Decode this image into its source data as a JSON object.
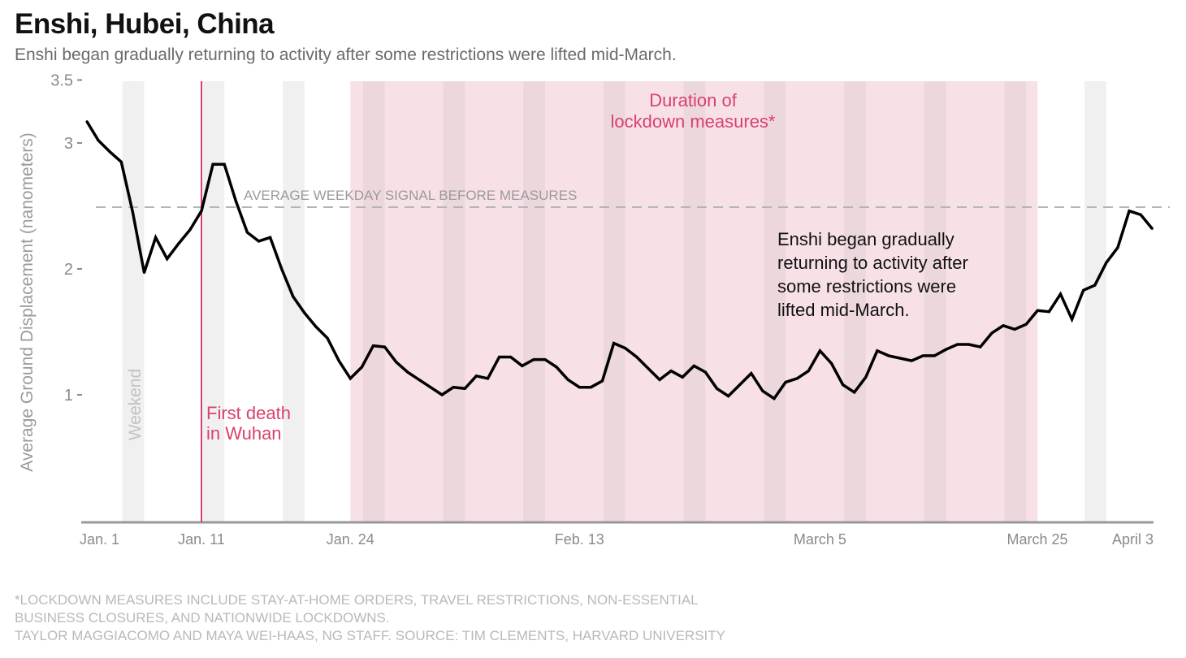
{
  "header": {
    "title": "Enshi, Hubei, China",
    "subtitle": "Enshi began gradually returning to activity after some restrictions were lifted mid-March."
  },
  "footer": {
    "note": "*Lockdown measures include stay-at-home orders, travel restrictions, non-essential\nbusiness closures, and nationwide lockdowns.",
    "credit": "Taylor Maggiacomo and Maya Wei-Haas, NG Staff. Source: Tim Clements, Harvard University"
  },
  "colors": {
    "line": "#000000",
    "lockdown": "#f7e1e7",
    "weekend": "#f0f0f0",
    "weekend_in_lockdown": "#ecd7dd",
    "accent": "#d9416b",
    "reference": "#b5b5b5",
    "axis": "#999999"
  },
  "chart_data": {
    "type": "line",
    "title": "Enshi, Hubei, China",
    "ylabel": "Average Ground Displacement (nanometers)",
    "xlabel": "",
    "ylim": [
      0,
      3.5
    ],
    "y_ticks": [
      {
        "value": 1,
        "label": "1"
      },
      {
        "value": 2,
        "label": "2"
      },
      {
        "value": 3,
        "label": "3"
      },
      {
        "value": 3.5,
        "label": "3.5"
      }
    ],
    "x_ticks": [
      {
        "day": 0,
        "label": "Jan. 1"
      },
      {
        "day": 10,
        "label": "Jan. 11"
      },
      {
        "day": 23,
        "label": "Jan. 24"
      },
      {
        "day": 43,
        "label": "Feb. 13"
      },
      {
        "day": 64,
        "label": "March 5"
      },
      {
        "day": 84,
        "label": "March 25"
      },
      {
        "day": 93,
        "label": "April 3"
      }
    ],
    "x_unit": "days since Jan. 1, 2020",
    "series": [
      {
        "name": "Enshi",
        "values": [
          3.17,
          3.02,
          2.93,
          2.85,
          2.45,
          1.97,
          2.25,
          2.08,
          2.2,
          2.31,
          2.46,
          2.83,
          2.83,
          2.54,
          2.29,
          2.22,
          2.25,
          2.0,
          1.78,
          1.65,
          1.54,
          1.45,
          1.27,
          1.13,
          1.22,
          1.39,
          1.38,
          1.26,
          1.18,
          1.12,
          1.06,
          1.0,
          1.06,
          1.05,
          1.15,
          1.13,
          1.3,
          1.3,
          1.23,
          1.28,
          1.28,
          1.22,
          1.12,
          1.06,
          1.06,
          1.11,
          1.41,
          1.37,
          1.3,
          1.21,
          1.12,
          1.19,
          1.14,
          1.23,
          1.18,
          1.05,
          0.99,
          1.08,
          1.17,
          1.03,
          0.97,
          1.1,
          1.13,
          1.19,
          1.35,
          1.25,
          1.08,
          1.02,
          1.14,
          1.35,
          1.31,
          1.29,
          1.27,
          1.31,
          1.31,
          1.36,
          1.4,
          1.4,
          1.38,
          1.49,
          1.55,
          1.52,
          1.56,
          1.67,
          1.66,
          1.8,
          1.6,
          1.83,
          1.87,
          2.05,
          2.17,
          2.46,
          2.43,
          2.32
        ]
      }
    ],
    "reference_line": {
      "value": 2.49,
      "label": "AVERAGE WEEKDAY SIGNAL BEFORE MEASURES"
    },
    "lockdown": {
      "start_day": 23,
      "end_day": 83,
      "label_lines": [
        "Duration of",
        "lockdown measures*"
      ]
    },
    "weekend_saturdays": [
      3,
      10,
      17,
      24,
      31,
      38,
      45,
      52,
      59,
      66,
      73,
      80,
      87
    ],
    "weekend_label": "Weekend",
    "event": {
      "day": 10,
      "label_lines": [
        "First death",
        "in Wuhan"
      ]
    },
    "annotation_lines": [
      "Enshi began gradually",
      "returning to activity after",
      "some restrictions were",
      "lifted mid-March."
    ]
  }
}
